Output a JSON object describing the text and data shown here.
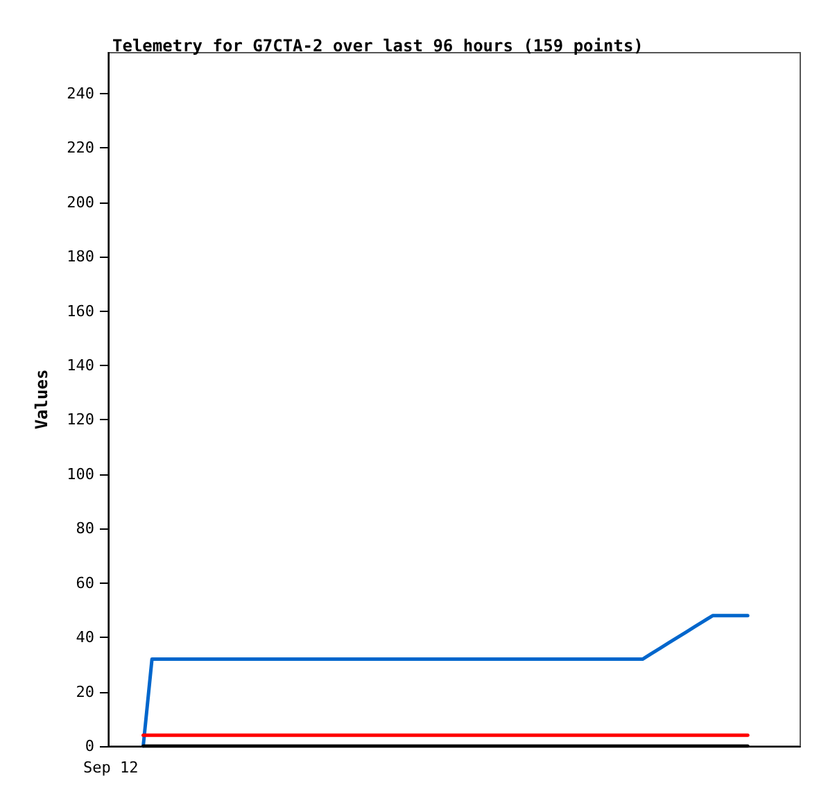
{
  "chart_data": {
    "type": "line",
    "title": "Telemetry for G7CTA-2 over last 96 hours (159 points)",
    "ylabel": "Values",
    "annotations": [
      "Sep 12"
    ],
    "categories": [
      null,
      null,
      null,
      null,
      null,
      null,
      null,
      null,
      null,
      null,
      null,
      null,
      null,
      null,
      null,
      null,
      null,
      null,
      null,
      null,
      null,
      null,
      null,
      null,
      null,
      null,
      null,
      null,
      null,
      null,
      null,
      null,
      null,
      null,
      null,
      null,
      null,
      null,
      null,
      null,
      null,
      null,
      null,
      null,
      null,
      null,
      null,
      null,
      null,
      null,
      null,
      null,
      null,
      null,
      null,
      null,
      null,
      null,
      null,
      null,
      null,
      null,
      null,
      null,
      null,
      null,
      null,
      null,
      null,
      null,
      null,
      null,
      null,
      null,
      null,
      null,
      null,
      null,
      null,
      null
    ],
    "ylim": [
      0,
      255
    ],
    "yticks": [
      0,
      20,
      40,
      60,
      80,
      100,
      120,
      140,
      160,
      180,
      200,
      220,
      240
    ],
    "grid": false,
    "marker": "none",
    "line_style": "solid",
    "series": [
      {
        "color": "#0066cc",
        "values": [
          null,
          null,
          null,
          null,
          0,
          32,
          32,
          32,
          32,
          32,
          32,
          32,
          32,
          32,
          32,
          32,
          32,
          32,
          32,
          32,
          32,
          32,
          32,
          32,
          32,
          32,
          32,
          32,
          32,
          32,
          32,
          32,
          32,
          32,
          32,
          32,
          32,
          32,
          32,
          32,
          32,
          32,
          32,
          32,
          32,
          32,
          32,
          32,
          32,
          32,
          32,
          32,
          32,
          32,
          32,
          32,
          32,
          32,
          32,
          32,
          32,
          32,
          34,
          36,
          38,
          40,
          42,
          44,
          46,
          48,
          48,
          48,
          48,
          48,
          null,
          null,
          null,
          null,
          null,
          null
        ]
      },
      {
        "color": "#ff0000",
        "values": [
          null,
          null,
          null,
          null,
          4,
          4,
          4,
          4,
          4,
          4,
          4,
          4,
          4,
          4,
          4,
          4,
          4,
          4,
          4,
          4,
          4,
          4,
          4,
          4,
          4,
          4,
          4,
          4,
          4,
          4,
          4,
          4,
          4,
          4,
          4,
          4,
          4,
          4,
          4,
          4,
          4,
          4,
          4,
          4,
          4,
          4,
          4,
          4,
          4,
          4,
          4,
          4,
          4,
          4,
          4,
          4,
          4,
          4,
          4,
          4,
          4,
          4,
          4,
          4,
          4,
          4,
          4,
          4,
          4,
          4,
          4,
          4,
          4,
          4,
          null,
          null,
          null,
          null,
          null,
          null
        ]
      },
      {
        "color": "#000000",
        "values": [
          null,
          null,
          null,
          null,
          0,
          0,
          0,
          0,
          0,
          0,
          0,
          0,
          0,
          0,
          0,
          0,
          0,
          0,
          0,
          0,
          0,
          0,
          0,
          0,
          0,
          0,
          0,
          0,
          0,
          0,
          0,
          0,
          0,
          0,
          0,
          0,
          0,
          0,
          0,
          0,
          0,
          0,
          0,
          0,
          0,
          0,
          0,
          0,
          0,
          0,
          0,
          0,
          0,
          0,
          0,
          0,
          0,
          0,
          0,
          0,
          0,
          0,
          0,
          0,
          0,
          0,
          0,
          0,
          0,
          0,
          0,
          0,
          0,
          0,
          null,
          null,
          null,
          null,
          null,
          null
        ]
      }
    ]
  }
}
